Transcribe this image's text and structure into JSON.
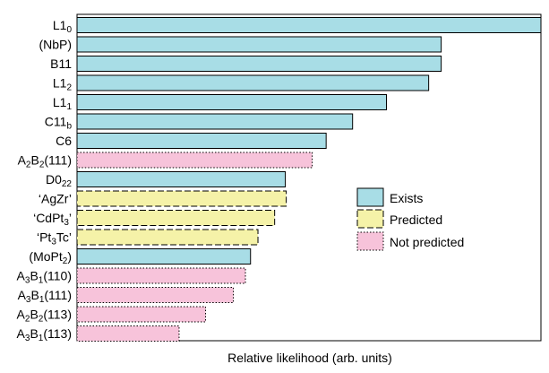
{
  "chart_data": {
    "type": "bar",
    "orientation": "horizontal",
    "xlabel": "Relative likelihood (arb. units)",
    "xlim": [
      0,
      100
    ],
    "legend_position": "right",
    "categories": [
      {
        "label": "L1",
        "sub": "0",
        "after": "",
        "value": 100,
        "status": "exists"
      },
      {
        "label": "(NbP)",
        "sub": "",
        "after": "",
        "value": 78.5,
        "status": "exists"
      },
      {
        "label": "B11",
        "sub": "",
        "after": "",
        "value": 78.5,
        "status": "exists"
      },
      {
        "label": "L1",
        "sub": "2",
        "after": "",
        "value": 75.8,
        "status": "exists"
      },
      {
        "label": "L1",
        "sub": "1",
        "after": "",
        "value": 66.7,
        "status": "exists"
      },
      {
        "label": "C11",
        "sub": "b",
        "after": "",
        "value": 59.4,
        "status": "exists"
      },
      {
        "label": "C6",
        "sub": "",
        "after": "",
        "value": 53.7,
        "status": "exists"
      },
      {
        "label": "A",
        "sub": "2",
        "after": "B",
        "sub2": "2",
        "after2": "(111)",
        "value": 50.7,
        "status": "not_predicted"
      },
      {
        "label": "D0",
        "sub": "22",
        "after": "",
        "value": 44.9,
        "status": "exists"
      },
      {
        "label": "‘AgZr’",
        "sub": "",
        "after": "",
        "value": 45.1,
        "status": "predicted"
      },
      {
        "label": "‘CdPt",
        "sub": "3",
        "after": "’",
        "value": 42.6,
        "status": "predicted"
      },
      {
        "label": "‘Pt",
        "sub": "3",
        "after": "Tc’",
        "value": 39.0,
        "status": "predicted"
      },
      {
        "label": "(MoPt",
        "sub": "2",
        "after": ")",
        "value": 37.4,
        "status": "exists"
      },
      {
        "label": "A",
        "sub": "3",
        "after": "B",
        "sub2": "1",
        "after2": "(110)",
        "value": 36.3,
        "status": "not_predicted"
      },
      {
        "label": "A",
        "sub": "3",
        "after": "B",
        "sub2": "1",
        "after2": "(111)",
        "value": 33.7,
        "status": "not_predicted"
      },
      {
        "label": "A",
        "sub": "2",
        "after": "B",
        "sub2": "2",
        "after2": "(113)",
        "value": 27.7,
        "status": "not_predicted"
      },
      {
        "label": "A",
        "sub": "3",
        "after": "B",
        "sub2": "1",
        "after2": "(113)",
        "value": 22.0,
        "status": "not_predicted"
      }
    ],
    "legend": [
      {
        "key": "exists",
        "label": "Exists"
      },
      {
        "key": "predicted",
        "label": "Predicted"
      },
      {
        "key": "not_predicted",
        "label": "Not predicted"
      }
    ],
    "colors": {
      "exists": "#a8dde6",
      "predicted": "#f5f2a8",
      "not_predicted": "#f7c3da"
    },
    "styles": {
      "exists": "solid",
      "predicted": "dashed",
      "not_predicted": "dotted"
    }
  }
}
